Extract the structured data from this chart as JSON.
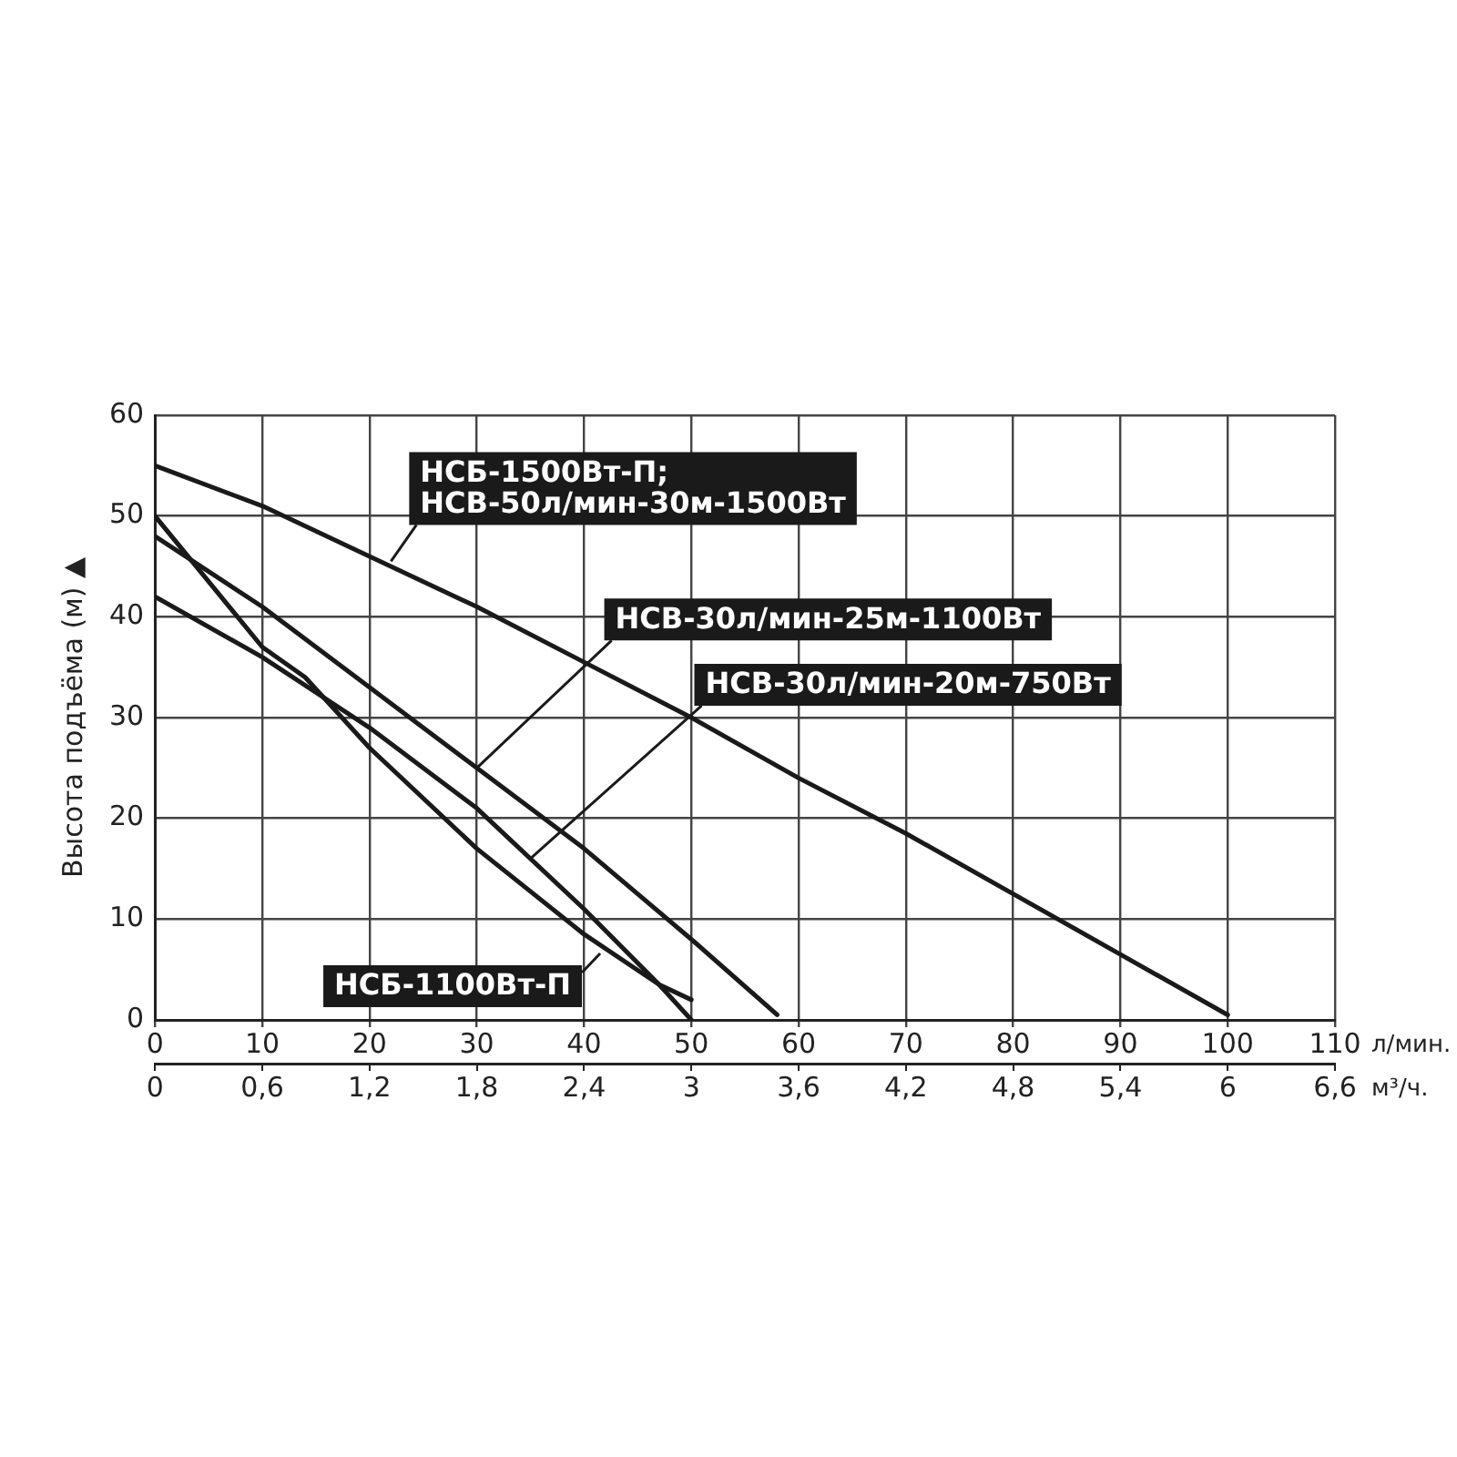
{
  "chart_data": {
    "type": "line",
    "ylabel": "Высота подъёма (м) ▲",
    "xlabel": "л/мин.",
    "x2label": "м³/ч.",
    "xlim": [
      0,
      110
    ],
    "xticks": [
      0,
      10,
      20,
      30,
      40,
      50,
      60,
      70,
      80,
      90,
      100,
      110
    ],
    "x2lim": [
      0,
      6.6
    ],
    "x2ticks": [
      0,
      {
        "value": 0.6,
        "label": "0,6"
      },
      {
        "value": 1.2,
        "label": "1,2"
      },
      {
        "value": 1.8,
        "label": "1,8"
      },
      {
        "value": 2.4,
        "label": "2,4"
      },
      3,
      {
        "value": 3.6,
        "label": "3,6"
      },
      {
        "value": 4.2,
        "label": "4,2"
      },
      {
        "value": 4.8,
        "label": "4,8"
      },
      {
        "value": 5.4,
        "label": "5,4"
      },
      6,
      {
        "value": 6.6,
        "label": "6,6"
      }
    ],
    "ylim": [
      0,
      60
    ],
    "yticks": [
      0,
      10,
      20,
      30,
      40,
      50,
      60
    ],
    "grid": true,
    "legend": false,
    "marker": "none",
    "line_style": "solid",
    "series": [
      {
        "color": "#1a1a1a",
        "x": [
          0,
          10,
          20,
          30,
          40,
          50,
          60,
          70,
          80,
          90,
          100
        ],
        "values": [
          55,
          51,
          46,
          41,
          35.5,
          30,
          24,
          18.5,
          12.5,
          6.5,
          0.5
        ]
      },
      {
        "color": "#1a1a1a",
        "x": [
          0,
          10,
          20,
          30,
          40,
          50,
          58
        ],
        "values": [
          48,
          41,
          33,
          25,
          17,
          8,
          0.5
        ]
      },
      {
        "color": "#1a1a1a",
        "x": [
          0,
          10,
          20,
          30,
          40,
          47,
          50
        ],
        "values": [
          42,
          36,
          29,
          21,
          11,
          3.5,
          0
        ]
      },
      {
        "color": "#1a1a1a",
        "x": [
          0,
          10,
          14,
          20,
          30,
          40,
          47,
          50
        ],
        "values": [
          50,
          37,
          34,
          27,
          17,
          8.5,
          3.5,
          2
        ]
      }
    ],
    "annotations": [
      {
        "text": "НСБ-1500Вт-П;\nНСВ-50л/мин-30м-1500Вт",
        "x": 22,
        "y": 45.5
      },
      {
        "text": "НСВ-30л/мин-25м-1100Вт",
        "x": 30,
        "y": 25
      },
      {
        "text": "НСВ-30л/мин-20м-750Вт",
        "x": 35,
        "y": 16
      },
      {
        "text": "НСБ-1100Вт-П",
        "x": 41.5,
        "y": 6.6
      }
    ]
  }
}
